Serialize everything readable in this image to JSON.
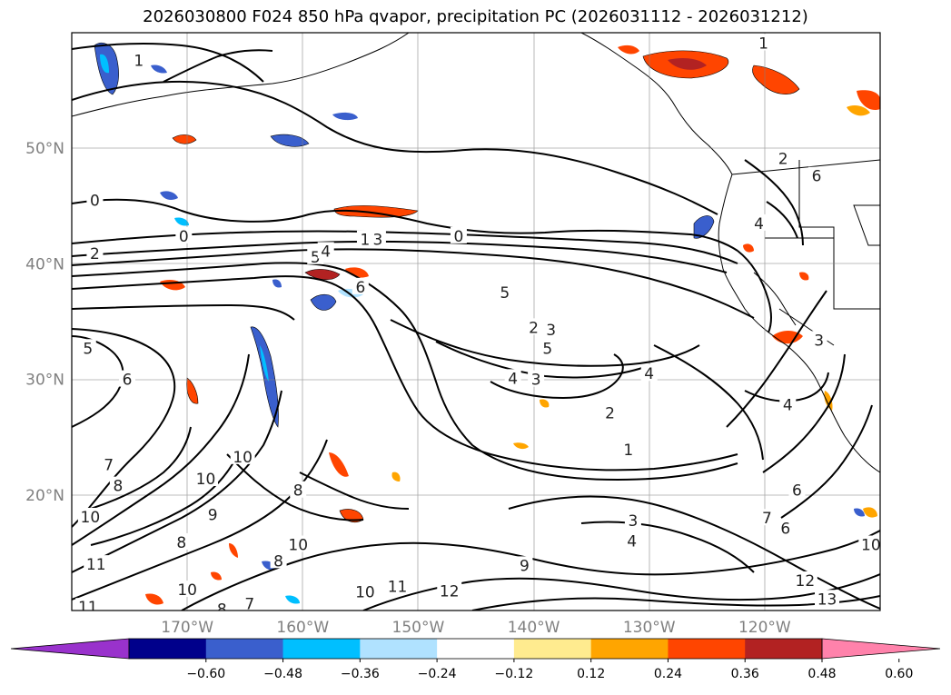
{
  "title": "2026030800 F024 850 hPa qvapor, precipitation PC (2026031112 - 2026031212)",
  "map": {
    "lon_range": [
      -180,
      -110
    ],
    "lat_range": [
      10,
      60
    ],
    "lat_ticks": [
      {
        "value": 50,
        "label": "50°N"
      },
      {
        "value": 40,
        "label": "40°N"
      },
      {
        "value": 30,
        "label": "30°N"
      },
      {
        "value": 20,
        "label": "20°N"
      }
    ],
    "lon_ticks": [
      {
        "value": -170,
        "label": "170°W"
      },
      {
        "value": -160,
        "label": "160°W"
      },
      {
        "value": -150,
        "label": "150°W"
      },
      {
        "value": -140,
        "label": "140°W"
      },
      {
        "value": -130,
        "label": "130°W"
      },
      {
        "value": -120,
        "label": "120°W"
      }
    ],
    "gridlines": true,
    "contour_labels": [
      {
        "text": "1",
        "lon": -174.2,
        "lat": 57.6
      },
      {
        "text": "0",
        "lon": -178,
        "lat": 45.5
      },
      {
        "text": "0",
        "lon": -170.3,
        "lat": 42.4
      },
      {
        "text": "2",
        "lon": -178,
        "lat": 40.9
      },
      {
        "text": "5",
        "lon": -158.9,
        "lat": 40.6
      },
      {
        "text": "4",
        "lon": -158,
        "lat": 41.1
      },
      {
        "text": "1",
        "lon": -154.6,
        "lat": 42.1
      },
      {
        "text": "3",
        "lon": -153.5,
        "lat": 42.1
      },
      {
        "text": "0",
        "lon": -146.5,
        "lat": 42.4
      },
      {
        "text": "5",
        "lon": -142.5,
        "lat": 37.5
      },
      {
        "text": "6",
        "lon": -155,
        "lat": 38
      },
      {
        "text": "5",
        "lon": -178.6,
        "lat": 32.7
      },
      {
        "text": "6",
        "lon": -175.2,
        "lat": 30
      },
      {
        "text": "2",
        "lon": -140,
        "lat": 34.5
      },
      {
        "text": "3",
        "lon": -138.5,
        "lat": 34.3
      },
      {
        "text": "5",
        "lon": -138.8,
        "lat": 32.7
      },
      {
        "text": "4",
        "lon": -141.8,
        "lat": 30.1
      },
      {
        "text": "3",
        "lon": -139.8,
        "lat": 30
      },
      {
        "text": "4",
        "lon": -130,
        "lat": 30.5
      },
      {
        "text": "2",
        "lon": -133.4,
        "lat": 27.1
      },
      {
        "text": "1",
        "lon": -131.8,
        "lat": 23.9
      },
      {
        "text": "10",
        "lon": -165.2,
        "lat": 23.3
      },
      {
        "text": "10",
        "lon": -168.4,
        "lat": 21.4
      },
      {
        "text": "8",
        "lon": -160.4,
        "lat": 20.4
      },
      {
        "text": "7",
        "lon": -176.8,
        "lat": 22.6
      },
      {
        "text": "8",
        "lon": -176,
        "lat": 20.8
      },
      {
        "text": "10",
        "lon": -178.4,
        "lat": 18.1
      },
      {
        "text": "9",
        "lon": -167.8,
        "lat": 18.3
      },
      {
        "text": "10",
        "lon": -160.4,
        "lat": 15.7
      },
      {
        "text": "8",
        "lon": -170.5,
        "lat": 15.9
      },
      {
        "text": "8",
        "lon": -162.1,
        "lat": 14.3
      },
      {
        "text": "11",
        "lon": -177.9,
        "lat": 14
      },
      {
        "text": "10",
        "lon": -170,
        "lat": 11.8
      },
      {
        "text": "11",
        "lon": -178.6,
        "lat": 10.3
      },
      {
        "text": "8",
        "lon": -167,
        "lat": 10.1
      },
      {
        "text": "7",
        "lon": -164.6,
        "lat": 10.6
      },
      {
        "text": "10",
        "lon": -154.6,
        "lat": 11.6
      },
      {
        "text": "11",
        "lon": -151.8,
        "lat": 12.1
      },
      {
        "text": "12",
        "lon": -147.3,
        "lat": 11.7
      },
      {
        "text": "9",
        "lon": -140.8,
        "lat": 13.9
      },
      {
        "text": "4",
        "lon": -131.5,
        "lat": 16
      },
      {
        "text": "3",
        "lon": -131.4,
        "lat": 17.8
      },
      {
        "text": "7",
        "lon": -119.8,
        "lat": 18
      },
      {
        "text": "6",
        "lon": -118.2,
        "lat": 17.1
      },
      {
        "text": "6",
        "lon": -117.2,
        "lat": 20.4
      },
      {
        "text": "12",
        "lon": -116.5,
        "lat": 12.6
      },
      {
        "text": "13",
        "lon": -114.6,
        "lat": 11
      },
      {
        "text": "10",
        "lon": -110.8,
        "lat": 15.7
      },
      {
        "text": "4",
        "lon": -118,
        "lat": 27.8
      },
      {
        "text": "3",
        "lon": -115.3,
        "lat": 33.4
      },
      {
        "text": "4",
        "lon": -120.5,
        "lat": 43.5
      },
      {
        "text": "2",
        "lon": -118.4,
        "lat": 49.1
      },
      {
        "text": "6",
        "lon": -115.5,
        "lat": 47.6
      },
      {
        "text": "1",
        "lon": -120.1,
        "lat": 59.1
      }
    ]
  },
  "colorbar": {
    "tick_labels": [
      "−0.60",
      "−0.48",
      "−0.36",
      "−0.24",
      "−0.12",
      "0.12",
      "0.24",
      "0.36",
      "0.48",
      "0.60"
    ],
    "colors": [
      "#9932cc",
      "#00008b",
      "#3a5fcd",
      "#00bfff",
      "#b0e2ff",
      "#ffffff",
      "#ffeb8f",
      "#ffa500",
      "#ff4500",
      "#b22222",
      "#ff82ab"
    ]
  }
}
